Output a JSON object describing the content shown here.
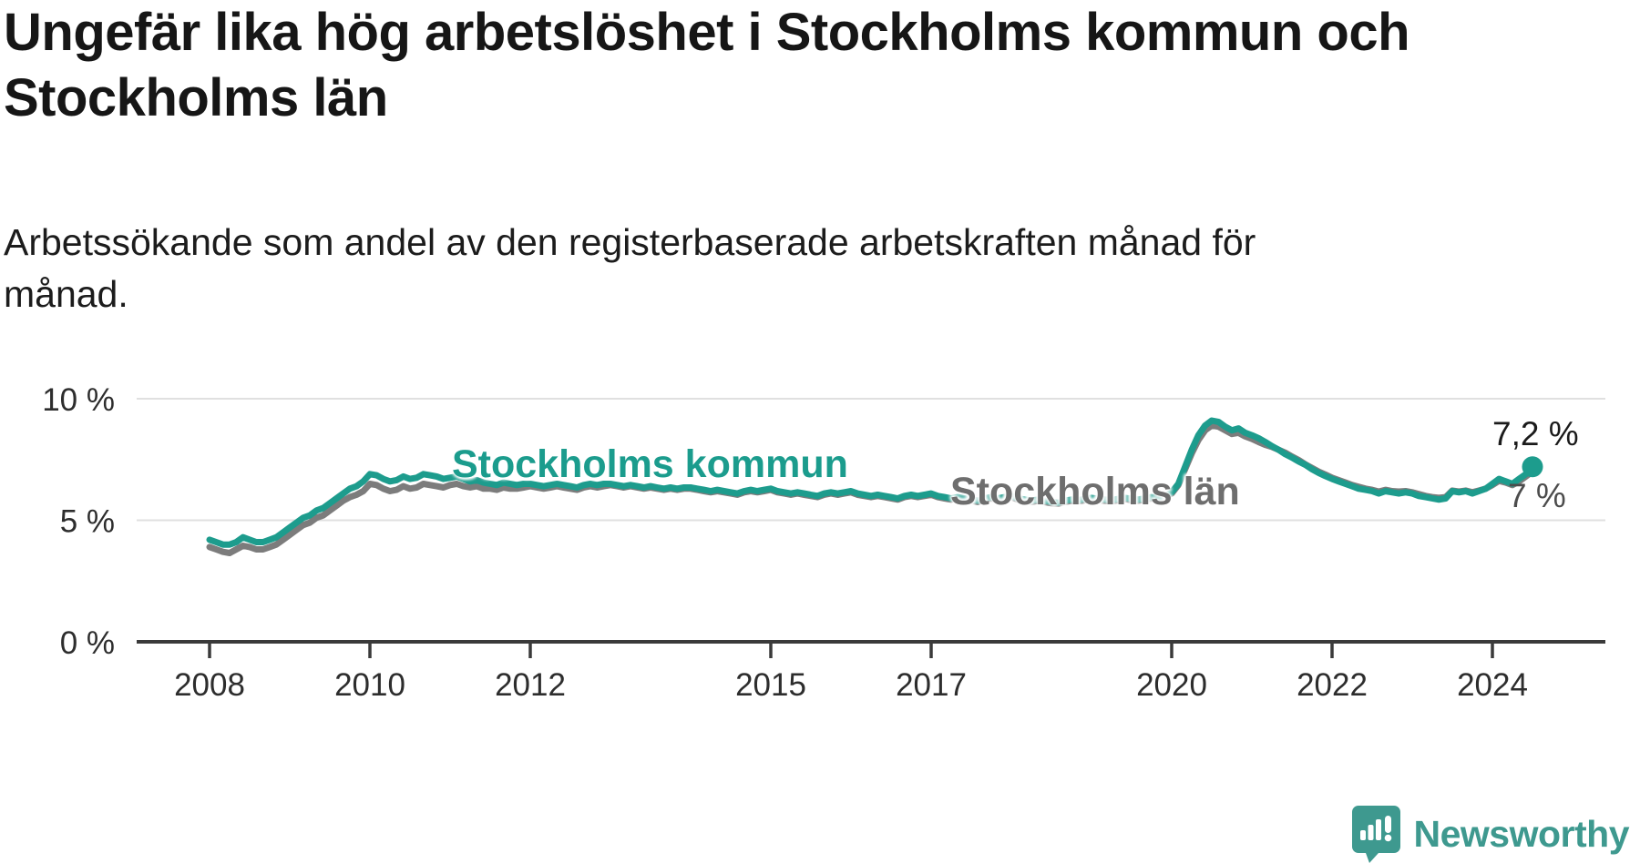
{
  "header": {
    "title": "Ungefär lika hög arbetslöshet i Stockholms kommun och Stockholms län",
    "subtitle": "Arbetssökande som andel av den registerbaserade arbetskraften månad för månad."
  },
  "footer": {
    "brand": "Newsworthy",
    "brand_color": "#3e998f"
  },
  "chart_data": {
    "type": "line",
    "title": "Ungefär lika hög arbetslöshet i Stockholms kommun och Stockholms län",
    "subtitle": "Arbetssökande som andel av den registerbaserade arbetskraften månad för månad.",
    "unit": "%",
    "x_start": 2008.0,
    "points_per_year": 12,
    "x_tick_years": [
      2008,
      2010,
      2012,
      2015,
      2017,
      2020,
      2022,
      2024
    ],
    "y_ticks": {
      "values": [
        10,
        5,
        0
      ],
      "labels": [
        "10 %",
        "5 %",
        "0 %"
      ]
    },
    "ylim": [
      0,
      10.5
    ],
    "grid": "horizontal-only",
    "legend_position": "inline-labels",
    "colors": {
      "kommun": "#1d9c8d",
      "lan": "#7c7c7c",
      "grid": "#e0e0e0",
      "axis": "#3a3a3a"
    },
    "series": [
      {
        "name": "Stockholms län",
        "color": "#7c7c7c",
        "end_label": "7 %",
        "end_value": 7.0,
        "values_by_year": [
          [
            3.9,
            3.8,
            3.7,
            3.65,
            3.8,
            3.95,
            3.9,
            3.8,
            3.8,
            3.9,
            4.0,
            4.2
          ],
          [
            4.4,
            4.6,
            4.8,
            4.9,
            5.1,
            5.2,
            5.4,
            5.6,
            5.8,
            5.95,
            6.05,
            6.2
          ],
          [
            6.5,
            6.45,
            6.3,
            6.2,
            6.25,
            6.4,
            6.3,
            6.35,
            6.5,
            6.45,
            6.4,
            6.35
          ],
          [
            6.45,
            6.5,
            6.4,
            6.35,
            6.4,
            6.3,
            6.3,
            6.25,
            6.35,
            6.3,
            6.3,
            6.35
          ],
          [
            6.4,
            6.35,
            6.3,
            6.35,
            6.4,
            6.35,
            6.3,
            6.25,
            6.35,
            6.4,
            6.35,
            6.4
          ],
          [
            6.45,
            6.4,
            6.35,
            6.4,
            6.35,
            6.3,
            6.35,
            6.3,
            6.25,
            6.3,
            6.25,
            6.3
          ],
          [
            6.3,
            6.25,
            6.2,
            6.15,
            6.2,
            6.15,
            6.1,
            6.05,
            6.15,
            6.2,
            6.15,
            6.2
          ],
          [
            6.25,
            6.15,
            6.1,
            6.05,
            6.1,
            6.05,
            6.0,
            5.95,
            6.05,
            6.1,
            6.05,
            6.1
          ],
          [
            6.15,
            6.05,
            6.0,
            5.95,
            6.0,
            5.95,
            5.9,
            5.85,
            5.95,
            6.0,
            5.95,
            6.0
          ],
          [
            6.05,
            5.95,
            5.9,
            5.85,
            5.9,
            5.85,
            5.8,
            5.75,
            5.85,
            5.9,
            5.85,
            5.9
          ],
          [
            5.95,
            5.85,
            5.8,
            5.75,
            5.8,
            5.75,
            5.7,
            5.68,
            5.75,
            5.8,
            5.78,
            5.82
          ],
          [
            5.88,
            5.82,
            5.8,
            5.78,
            5.82,
            5.88,
            5.82,
            5.8,
            5.85,
            5.9,
            5.88,
            5.95
          ],
          [
            6.1,
            6.45,
            7.1,
            7.75,
            8.3,
            8.7,
            8.9,
            8.85,
            8.7,
            8.55,
            8.6,
            8.45
          ],
          [
            8.35,
            8.22,
            8.1,
            8.02,
            7.9,
            7.78,
            7.62,
            7.48,
            7.3,
            7.15,
            7.0,
            6.88
          ],
          [
            6.75,
            6.65,
            6.55,
            6.45,
            6.38,
            6.3,
            6.25,
            6.18,
            6.25,
            6.2,
            6.18,
            6.2
          ],
          [
            6.15,
            6.08,
            6.0,
            5.95,
            5.92,
            5.95,
            6.22,
            6.18,
            6.22,
            6.15,
            6.22,
            6.3
          ],
          [
            6.45,
            6.62,
            6.55,
            6.45,
            6.6,
            6.8,
            7.0
          ]
        ]
      },
      {
        "name": "Stockholms kommun",
        "color": "#1d9c8d",
        "end_label": "7,2 %",
        "end_value": 7.2,
        "end_dot": true,
        "values_by_year": [
          [
            4.2,
            4.1,
            4.0,
            4.0,
            4.1,
            4.3,
            4.2,
            4.1,
            4.1,
            4.2,
            4.3,
            4.5
          ],
          [
            4.7,
            4.9,
            5.1,
            5.2,
            5.4,
            5.5,
            5.7,
            5.9,
            6.1,
            6.3,
            6.4,
            6.6
          ],
          [
            6.9,
            6.85,
            6.7,
            6.6,
            6.65,
            6.8,
            6.7,
            6.75,
            6.9,
            6.85,
            6.8,
            6.7
          ],
          [
            6.75,
            6.8,
            6.7,
            6.6,
            6.65,
            6.55,
            6.5,
            6.45,
            6.55,
            6.5,
            6.45,
            6.5
          ],
          [
            6.5,
            6.45,
            6.4,
            6.45,
            6.5,
            6.45,
            6.4,
            6.35,
            6.45,
            6.5,
            6.45,
            6.5
          ],
          [
            6.5,
            6.45,
            6.4,
            6.45,
            6.4,
            6.35,
            6.4,
            6.35,
            6.3,
            6.35,
            6.3,
            6.35
          ],
          [
            6.35,
            6.3,
            6.25,
            6.2,
            6.25,
            6.2,
            6.15,
            6.1,
            6.2,
            6.25,
            6.2,
            6.25
          ],
          [
            6.3,
            6.2,
            6.15,
            6.1,
            6.15,
            6.1,
            6.05,
            6.0,
            6.1,
            6.15,
            6.1,
            6.15
          ],
          [
            6.2,
            6.1,
            6.05,
            6.0,
            6.05,
            6.0,
            5.95,
            5.9,
            6.0,
            6.05,
            6.0,
            6.05
          ],
          [
            6.1,
            6.0,
            5.95,
            5.9,
            5.95,
            5.9,
            5.85,
            5.8,
            5.9,
            5.95,
            5.9,
            5.95
          ],
          [
            6.0,
            5.9,
            5.85,
            5.8,
            5.85,
            5.8,
            5.75,
            5.72,
            5.8,
            5.85,
            5.82,
            5.88
          ],
          [
            5.92,
            5.88,
            5.85,
            5.82,
            5.88,
            5.92,
            5.88,
            5.85,
            5.9,
            5.95,
            5.92,
            6.0
          ],
          [
            6.15,
            6.5,
            7.2,
            7.9,
            8.5,
            8.9,
            9.1,
            9.05,
            8.85,
            8.7,
            8.78,
            8.6
          ],
          [
            8.5,
            8.38,
            8.22,
            8.05,
            7.9,
            7.72,
            7.58,
            7.42,
            7.28,
            7.1,
            6.95,
            6.82
          ],
          [
            6.7,
            6.6,
            6.5,
            6.4,
            6.3,
            6.25,
            6.2,
            6.1,
            6.2,
            6.15,
            6.1,
            6.15
          ],
          [
            6.1,
            6.0,
            5.95,
            5.9,
            5.85,
            5.9,
            6.2,
            6.15,
            6.2,
            6.1,
            6.2,
            6.3
          ],
          [
            6.5,
            6.7,
            6.6,
            6.5,
            6.7,
            6.9,
            7.2
          ]
        ]
      }
    ]
  }
}
